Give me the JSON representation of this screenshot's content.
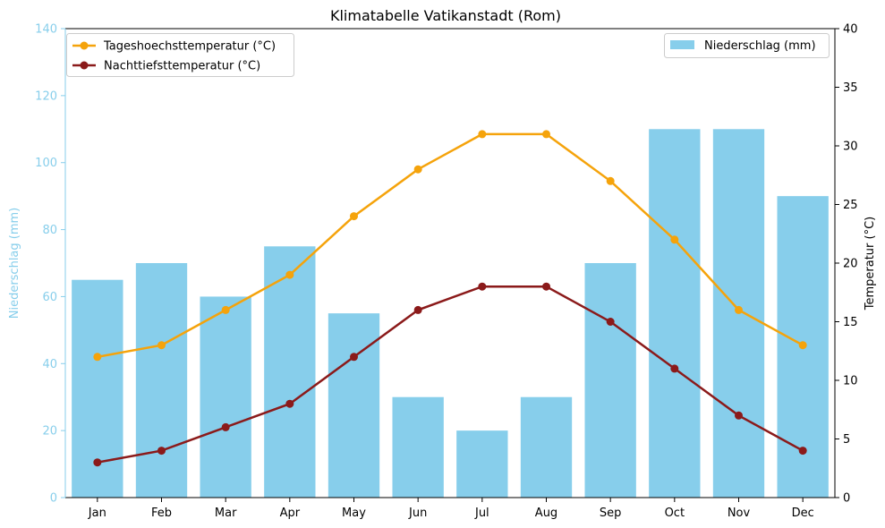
{
  "chart_data": {
    "type": "bar",
    "title": "Klimatabelle Vatikanstadt (Rom)",
    "categories": [
      "Jan",
      "Feb",
      "Mar",
      "Apr",
      "May",
      "Jun",
      "Jul",
      "Aug",
      "Sep",
      "Oct",
      "Nov",
      "Dec"
    ],
    "y_left": {
      "label": "Niederschlag (mm)",
      "lim": [
        0,
        140
      ],
      "ticks": [
        0,
        20,
        40,
        60,
        80,
        100,
        120,
        140
      ],
      "color": "#87ceeb"
    },
    "y_right": {
      "label": "Temperatur (°C)",
      "lim": [
        0,
        40
      ],
      "ticks": [
        0,
        5,
        10,
        15,
        20,
        25,
        30,
        35,
        40
      ],
      "color": "#000000"
    },
    "bars": {
      "name": "Niederschlag (mm)",
      "color": "#87ceeb",
      "values": [
        65,
        70,
        60,
        75,
        55,
        30,
        20,
        30,
        70,
        110,
        110,
        90
      ]
    },
    "lines": [
      {
        "name": "Tageshoechsttemperatur (°C)",
        "color": "#f5a30b",
        "values": [
          12,
          13,
          16,
          19,
          24,
          28,
          31,
          31,
          27,
          22,
          16,
          13
        ]
      },
      {
        "name": "Nachttiefsttemperatur (°C)",
        "color": "#8b1a1a",
        "values": [
          3,
          4,
          6,
          8,
          12,
          16,
          18,
          18,
          15,
          11,
          7,
          4
        ]
      }
    ],
    "legend_left_position": "top-left",
    "legend_right_position": "top-right",
    "grid": false
  }
}
